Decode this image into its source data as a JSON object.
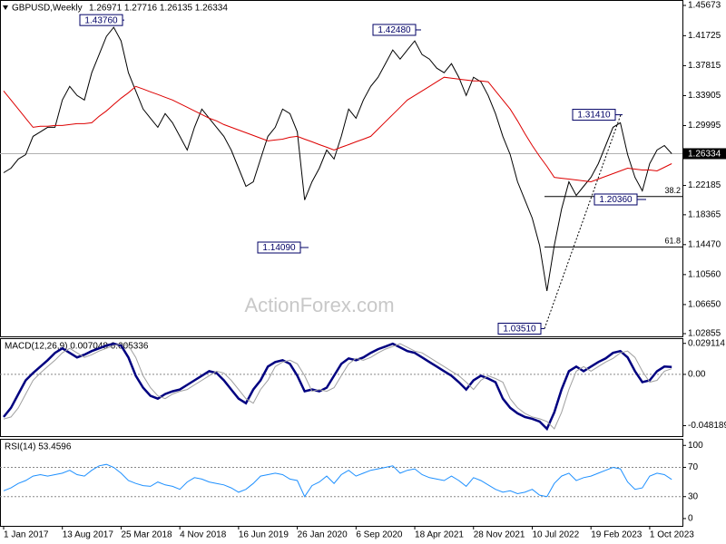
{
  "chart_data": [
    {
      "type": "line",
      "title": "GBPUSD,Weekly",
      "ohlc": "1.26971 1.27716 1.26135 1.26334",
      "watermark": "ActionForex.com",
      "categories": [
        "1 Jan 2017",
        null,
        null,
        null,
        null,
        null,
        null,
        null,
        "13 Aug 2017",
        null,
        null,
        null,
        null,
        null,
        null,
        null,
        "25 Mar 2018",
        null,
        null,
        null,
        null,
        null,
        null,
        null,
        "4 Nov 2018",
        null,
        null,
        null,
        null,
        null,
        null,
        null,
        "16 Jun 2019",
        null,
        null,
        null,
        null,
        null,
        null,
        null,
        "26 Jan 2020",
        null,
        null,
        null,
        null,
        null,
        null,
        null,
        "6 Sep 2020",
        null,
        null,
        null,
        null,
        null,
        null,
        null,
        "18 Apr 2021",
        null,
        null,
        null,
        null,
        null,
        null,
        null,
        "28 Nov 2021",
        null,
        null,
        null,
        null,
        null,
        null,
        null,
        "10 Jul 2022",
        null,
        null,
        null,
        null,
        null,
        null,
        null,
        "19 Feb 2023",
        null,
        null,
        null,
        null,
        null,
        null,
        null,
        "1 Oct 2023",
        null,
        null,
        null
      ],
      "series": [
        {
          "color": "#000000",
          "values": [
            1.2385,
            1.2444,
            1.2563,
            1.2622,
            1.2859,
            1.2918,
            1.2978,
            1.2978,
            1.3333,
            1.3511,
            1.3393,
            1.3333,
            1.3689,
            1.3926,
            1.4164,
            1.4282,
            1.4104,
            1.3689,
            1.3452,
            1.3215,
            1.3096,
            1.2978,
            1.3156,
            1.3037,
            1.2859,
            1.2681,
            1.2978,
            1.3215,
            1.3096,
            1.2978,
            1.2859,
            1.2681,
            1.2444,
            1.2207,
            1.2266,
            1.2563,
            1.2859,
            1.2978,
            1.3215,
            1.3156,
            1.2918,
            1.2029,
            1.2266,
            1.2444,
            1.2681,
            1.2563,
            1.2859,
            1.3215,
            1.3096,
            1.3333,
            1.3511,
            1.363,
            1.3808,
            1.3986,
            1.3867,
            1.3986,
            1.4104,
            1.3926,
            1.3867,
            1.3749,
            1.3689,
            1.3808,
            1.363,
            1.3393,
            1.363,
            1.3571,
            1.3393,
            1.3156,
            1.2859,
            1.2622,
            1.2266,
            1.2029,
            1.1792,
            1.1436,
            1.0843,
            1.1436,
            1.191,
            1.2266,
            1.2088,
            1.2207,
            1.2325,
            1.2503,
            1.274,
            1.2978,
            1.3037,
            1.2622,
            1.2325,
            1.2148,
            1.2503,
            1.2681,
            1.274,
            1.26334
          ]
        },
        {
          "color": "#dd0000",
          "values": [
            1.3452,
            1.3333,
            1.3215,
            1.3096,
            1.2978,
            1.299,
            1.299,
            1.3001,
            1.3001,
            1.3013,
            1.3025,
            1.3025,
            1.3037,
            1.312,
            1.3191,
            1.3274,
            1.3357,
            1.3428,
            1.3511,
            1.3476,
            1.344,
            1.3405,
            1.3369,
            1.3333,
            1.3286,
            1.3239,
            1.3191,
            1.3144,
            1.3096,
            1.3061,
            1.3013,
            1.2978,
            1.2942,
            1.2906,
            1.2871,
            1.2835,
            1.28,
            1.2812,
            1.2823,
            1.2847,
            1.2859,
            1.2823,
            1.2788,
            1.2752,
            1.2717,
            1.2681,
            1.2717,
            1.2752,
            1.2788,
            1.2823,
            1.2859,
            1.2954,
            1.3049,
            1.3144,
            1.3239,
            1.3333,
            1.3393,
            1.3452,
            1.3511,
            1.3571,
            1.363,
            1.3618,
            1.3606,
            1.3594,
            1.3582,
            1.3582,
            1.3571,
            1.3452,
            1.3333,
            1.3215,
            1.3061,
            1.2895,
            1.274,
            1.2598,
            1.2468,
            1.2325,
            1.2313,
            1.2302,
            1.229,
            1.2278,
            1.2266,
            1.2302,
            1.2337,
            1.2373,
            1.2408,
            1.2444,
            1.2432,
            1.242,
            1.242,
            1.2408,
            1.2456,
            1.2503
          ]
        }
      ],
      "ylim": [
        1.025,
        1.4638
      ],
      "yticks": [
        1.45673,
        1.41725,
        1.37815,
        1.33905,
        1.29995,
        1.22185,
        1.18365,
        {
          "value": 1.1447,
          "label": "1.14470"
        },
        {
          "value": 1.1056,
          "label": "1.10560"
        },
        {
          "value": 1.0665,
          "label": "1.06650"
        },
        1.02855
      ],
      "last_price": {
        "value": 1.26334,
        "label": "1.26334"
      },
      "annotations": [
        {
          "value": 1.4376,
          "label": "1.43760"
        },
        {
          "value": 1.4248,
          "label": "1.42480"
        },
        {
          "value": 1.3141,
          "label": "1.31410"
        },
        {
          "value": 1.2036,
          "label": "1.20360"
        },
        {
          "value": 1.1409,
          "label": "1.14090"
        },
        {
          "value": 1.0351,
          "label": "1.03510"
        }
      ],
      "fib_levels": [
        {
          "ratio": 38.2,
          "price": 1.2075
        },
        {
          "ratio": 61.8,
          "price": 1.1417
        }
      ]
    },
    {
      "type": "line",
      "title": "MACD(12,26,9) 0.007048 0.005336",
      "series": [
        {
          "color": "#000080",
          "values": [
            -0.04,
            -0.0314,
            -0.0185,
            -0.0056,
            0.0013,
            0.0073,
            0.0133,
            0.0202,
            0.0245,
            0.0202,
            0.0159,
            0.0185,
            0.0219,
            0.0245,
            0.0271,
            0.0288,
            0.0271,
            0.0159,
            -0.0013,
            -0.0125,
            -0.0202,
            -0.0228,
            -0.0185,
            -0.0159,
            -0.0142,
            -0.0099,
            -0.0056,
            -0.0013,
            0.003,
            0.0013,
            -0.0056,
            -0.0142,
            -0.0228,
            -0.0271,
            -0.0142,
            -0.0056,
            0.0073,
            0.0116,
            0.0133,
            0.0099,
            -0.0013,
            -0.0159,
            -0.0142,
            -0.0159,
            -0.0125,
            -0.0013,
            0.0099,
            0.015,
            0.0133,
            0.0159,
            0.0202,
            0.0237,
            0.0262,
            0.0288,
            0.0254,
            0.0219,
            0.0202,
            0.0159,
            0.0116,
            0.0073,
            0.003,
            -0.0013,
            -0.0073,
            -0.0142,
            -0.0056,
            -0.0013,
            -0.0039,
            -0.0073,
            -0.0228,
            -0.0314,
            -0.0366,
            -0.04,
            -0.0417,
            -0.0443,
            -0.0512,
            -0.0357,
            -0.0142,
            0.003,
            0.0073,
            0.003,
            0.0073,
            0.0116,
            0.015,
            0.0202,
            0.0219,
            0.0159,
            0.003,
            -0.0073,
            -0.0056,
            0.003,
            0.0073,
            0.007
          ]
        },
        {
          "color": "#a0a0a0",
          "values": [
            -0.042,
            -0.04,
            -0.0314,
            -0.0185,
            -0.0056,
            0.0013,
            0.0073,
            0.0133,
            0.0202,
            0.0245,
            0.0202,
            0.0159,
            0.0185,
            0.0219,
            0.0245,
            0.0271,
            0.0288,
            0.0271,
            0.0159,
            -0.0013,
            -0.0125,
            -0.0202,
            -0.0228,
            -0.0185,
            -0.0159,
            -0.0142,
            -0.0099,
            -0.0056,
            -0.0013,
            0.003,
            0.0013,
            -0.0056,
            -0.0142,
            -0.0228,
            -0.0271,
            -0.0142,
            -0.0056,
            0.0073,
            0.0116,
            0.0133,
            0.0099,
            -0.0013,
            -0.0159,
            -0.0142,
            -0.0159,
            -0.0125,
            -0.0013,
            0.0099,
            0.015,
            0.0133,
            0.0159,
            0.0202,
            0.0237,
            0.0262,
            0.0288,
            0.0254,
            0.0219,
            0.0202,
            0.0159,
            0.0116,
            0.0073,
            0.003,
            -0.0013,
            -0.0073,
            -0.0142,
            -0.0056,
            -0.0013,
            -0.0039,
            -0.0073,
            -0.0228,
            -0.0314,
            -0.0366,
            -0.04,
            -0.0417,
            -0.0443,
            -0.0512,
            -0.0357,
            -0.0142,
            0.003,
            0.0073,
            0.003,
            0.0073,
            0.0116,
            0.015,
            0.0202,
            0.0219,
            0.0159,
            0.003,
            -0.0073,
            -0.0056,
            0.003,
            0.0053
          ]
        }
      ],
      "ylim": [
        -0.058,
        0.034
      ],
      "yticks": [
        0.029114,
        {
          "value": 0,
          "label": "0.00"
        },
        -0.048189
      ],
      "levels": [
        0
      ]
    },
    {
      "type": "line",
      "title": "RSI(14) 53.4596",
      "series": [
        {
          "color": "#1e90ff",
          "values": [
            38,
            42,
            48,
            52,
            58,
            60,
            58,
            60,
            62,
            66,
            60,
            58,
            66,
            72,
            74,
            70,
            62,
            52,
            48,
            45,
            44,
            50,
            46,
            44,
            40,
            50,
            56,
            54,
            50,
            48,
            46,
            42,
            36,
            40,
            48,
            58,
            60,
            62,
            60,
            54,
            52,
            30,
            45,
            50,
            58,
            48,
            60,
            66,
            58,
            62,
            66,
            68,
            70,
            72,
            62,
            66,
            68,
            60,
            56,
            54,
            52,
            58,
            52,
            44,
            56,
            52,
            46,
            40,
            36,
            38,
            34,
            36,
            40,
            32,
            30,
            48,
            58,
            62,
            52,
            56,
            58,
            62,
            66,
            70,
            68,
            50,
            40,
            42,
            58,
            62,
            60,
            53.46
          ]
        }
      ],
      "ylim": [
        -10,
        109
      ],
      "yticks": [
        100,
        70,
        30,
        0
      ],
      "levels": [
        70,
        30
      ]
    }
  ]
}
